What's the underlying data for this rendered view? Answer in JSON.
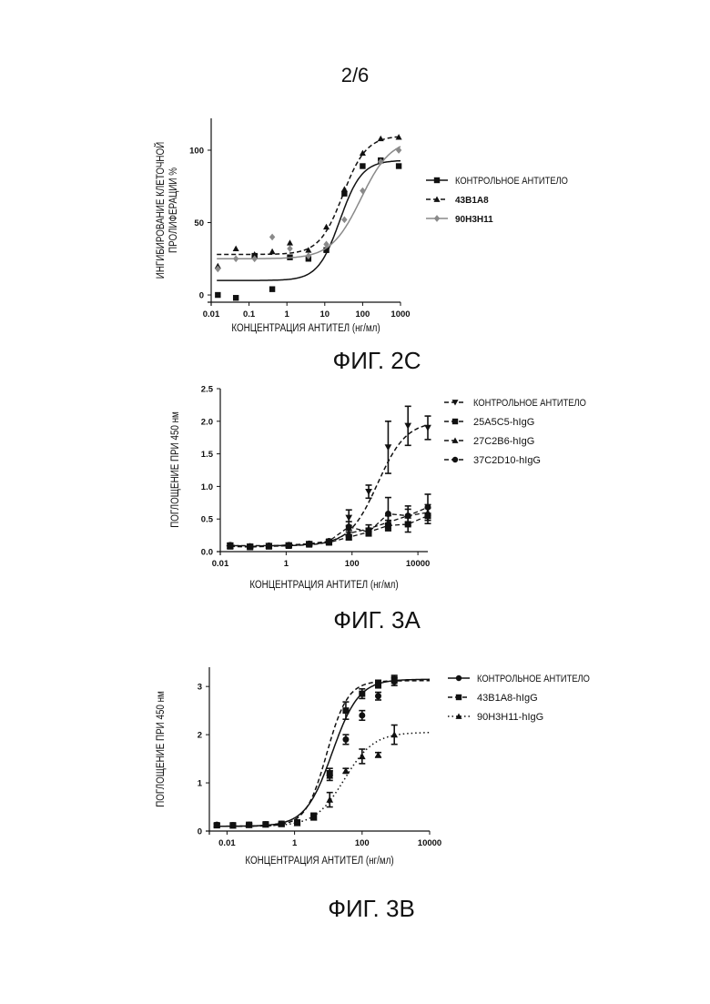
{
  "page_number": "2/6",
  "chart_data": [
    {
      "id": "fig2c",
      "caption": "ФИГ. 2С",
      "type": "scatter",
      "x_scale": "log",
      "xlim": [
        0.01,
        1000
      ],
      "ylim": [
        -5,
        122
      ],
      "x_ticks": [
        0.01,
        0.1,
        1,
        10,
        100,
        1000
      ],
      "x_tick_labels": [
        "0.01",
        "0.1",
        "1",
        "10",
        "100",
        "1000"
      ],
      "y_ticks": [
        0,
        50,
        100
      ],
      "y_tick_labels": [
        "0",
        "50",
        "100"
      ],
      "xlabel": "КОНЦЕНТРАЦИЯ АНТИТЕЛ (нг/мл)",
      "ylabel": [
        "ИНГИБИРОВАНИЕ КЛЕТОЧНОЙ",
        "ПРОЛИФЕРАЦИИ %"
      ],
      "legend_position": "right",
      "series": [
        {
          "name": "КОНТРОЛЬНОЕ АНТИТЕЛО",
          "marker": "square",
          "dash": "solid",
          "color": "#111111",
          "x": [
            0.015,
            0.045,
            0.14,
            0.41,
            1.2,
            3.7,
            11,
            33,
            100,
            300,
            900
          ],
          "y": [
            0,
            -2,
            27,
            4,
            26,
            25,
            31,
            70,
            89,
            93,
            89
          ],
          "fit": {
            "bottom": 10,
            "top": 93,
            "ec50": 25,
            "hill": 1.5
          }
        },
        {
          "name": "43B1A8",
          "marker": "triangle",
          "dash": "dashed",
          "color": "#111111",
          "x": [
            0.015,
            0.045,
            0.14,
            0.41,
            1.2,
            3.7,
            11,
            33,
            100,
            300,
            900
          ],
          "y": [
            20,
            32,
            28,
            30,
            36,
            31,
            47,
            73,
            98,
            108,
            109
          ],
          "fit": {
            "bottom": 28,
            "top": 110,
            "ec50": 30,
            "hill": 1.4
          }
        },
        {
          "name": "90H3H11",
          "marker": "diamond",
          "dash": "solid",
          "color": "#8a8a8a",
          "x": [
            0.015,
            0.045,
            0.14,
            0.41,
            1.2,
            3.7,
            11,
            33,
            100,
            300,
            900
          ],
          "y": [
            18,
            25,
            25,
            40,
            32,
            27,
            35,
            52,
            72,
            92,
            100
          ],
          "fit": {
            "bottom": 25,
            "top": 108,
            "ec50": 90,
            "hill": 1.1
          }
        }
      ]
    },
    {
      "id": "fig3a",
      "caption": "ФИГ. 3А",
      "type": "scatter",
      "x_scale": "log",
      "xlim": [
        0.01,
        20000
      ],
      "ylim": [
        0,
        2.5
      ],
      "x_ticks": [
        0.01,
        1,
        100,
        10000
      ],
      "x_tick_labels": [
        "0.01",
        "1",
        "100",
        "10000"
      ],
      "y_ticks": [
        0,
        0.5,
        1.0,
        1.5,
        2.0,
        2.5
      ],
      "y_tick_labels": [
        "0.0",
        "0.5",
        "1.0",
        "1.5",
        "2.0",
        "2.5"
      ],
      "xlabel": "КОНЦЕНТРАЦИЯ АНТИТЕЛ (нг/мл)",
      "ylabel": [
        "ПОГЛОЩЕНИЕ ПРИ 450 нм"
      ],
      "legend_position": "right",
      "series": [
        {
          "name": "КОНТРОЛЬНОЕ АНТИТЕЛО",
          "marker": "triangle-down",
          "dash": "dashed",
          "color": "#111111",
          "x": [
            0.02,
            0.08,
            0.3,
            1.2,
            5,
            20,
            80,
            320,
            1250,
            5000,
            20000
          ],
          "y": [
            0.09,
            0.08,
            0.09,
            0.1,
            0.12,
            0.15,
            0.52,
            0.92,
            1.6,
            1.93,
            1.9
          ],
          "err": [
            0.04,
            0.03,
            0.03,
            0.03,
            0.03,
            0.03,
            0.12,
            0.1,
            0.4,
            0.3,
            0.18
          ],
          "fit": {
            "bottom": 0.09,
            "top": 2.0,
            "ec50": 600,
            "hill": 1.0
          }
        },
        {
          "name": "25A5C5-hIgG",
          "marker": "square",
          "dash": "dashed",
          "color": "#111111",
          "x": [
            0.02,
            0.08,
            0.3,
            1.2,
            5,
            20,
            80,
            320,
            1250,
            5000,
            20000
          ],
          "y": [
            0.08,
            0.07,
            0.08,
            0.09,
            0.11,
            0.14,
            0.22,
            0.3,
            0.4,
            0.42,
            0.55
          ],
          "err": [
            0.03,
            0.02,
            0.02,
            0.02,
            0.02,
            0.03,
            0.04,
            0.05,
            0.08,
            0.12,
            0.12
          ]
        },
        {
          "name": "27C2B6-hIgG",
          "marker": "triangle",
          "dash": "dashed",
          "color": "#111111",
          "x": [
            0.02,
            0.08,
            0.3,
            1.2,
            5,
            20,
            80,
            320,
            1250,
            5000,
            20000
          ],
          "y": [
            0.09,
            0.08,
            0.09,
            0.1,
            0.12,
            0.15,
            0.28,
            0.35,
            0.45,
            0.55,
            0.6
          ],
          "err": [
            0.03,
            0.02,
            0.02,
            0.02,
            0.02,
            0.03,
            0.05,
            0.06,
            0.1,
            0.1,
            0.12
          ]
        },
        {
          "name": "37C2D10-hIgG",
          "marker": "circle",
          "dash": "dashed",
          "color": "#111111",
          "x": [
            0.02,
            0.08,
            0.3,
            1.2,
            5,
            20,
            80,
            320,
            1250,
            5000,
            20000
          ],
          "y": [
            0.1,
            0.08,
            0.09,
            0.1,
            0.12,
            0.16,
            0.38,
            0.3,
            0.58,
            0.55,
            0.68
          ],
          "err": [
            0.03,
            0.02,
            0.02,
            0.02,
            0.02,
            0.03,
            0.08,
            0.06,
            0.25,
            0.15,
            0.2
          ]
        }
      ]
    },
    {
      "id": "fig3b",
      "caption": "ФИГ. 3В",
      "type": "scatter",
      "x_scale": "log",
      "xlim": [
        0.003,
        10000
      ],
      "ylim": [
        0,
        3.4
      ],
      "x_ticks": [
        0.01,
        1,
        100,
        10000
      ],
      "x_tick_labels": [
        "0.01",
        "1",
        "100",
        "10000"
      ],
      "y_ticks": [
        0,
        1,
        2,
        3
      ],
      "y_tick_labels": [
        "0",
        "1",
        "2",
        "3"
      ],
      "xlabel": "КОНЦЕНТРАЦИЯ АНТИТЕЛ (нг/мл)",
      "ylabel": [
        "ПОГЛОЩЕНИЕ ПРИ 450 нм"
      ],
      "legend_position": "right",
      "series": [
        {
          "name": "КОНТРОЛЬНОЕ АНТИТЕЛО",
          "marker": "circle",
          "dash": "solid",
          "color": "#111111",
          "x": [
            0.005,
            0.015,
            0.045,
            0.14,
            0.41,
            1.2,
            3.7,
            11,
            33,
            100,
            300,
            900
          ],
          "y": [
            0.13,
            0.12,
            0.13,
            0.14,
            0.15,
            0.17,
            0.3,
            1.15,
            1.9,
            2.4,
            2.8,
            3.1
          ],
          "err": [
            0.03,
            0.03,
            0.03,
            0.03,
            0.03,
            0.03,
            0.05,
            0.1,
            0.1,
            0.1,
            0.08,
            0.08
          ],
          "fit": {
            "bottom": 0.1,
            "top": 3.15,
            "ec50": 13,
            "hill": 1.1
          }
        },
        {
          "name": "43B1A8-hIgG",
          "marker": "square",
          "dash": "dashed",
          "color": "#111111",
          "x": [
            0.005,
            0.015,
            0.045,
            0.14,
            0.41,
            1.2,
            3.7,
            11,
            33,
            100,
            300,
            900
          ],
          "y": [
            0.12,
            0.12,
            0.13,
            0.14,
            0.15,
            0.18,
            0.32,
            1.2,
            2.5,
            2.85,
            3.05,
            3.15
          ],
          "err": [
            0.03,
            0.03,
            0.03,
            0.03,
            0.03,
            0.03,
            0.05,
            0.1,
            0.18,
            0.1,
            0.08,
            0.08
          ],
          "fit": {
            "bottom": 0.1,
            "top": 3.12,
            "ec50": 9,
            "hill": 1.4
          }
        },
        {
          "name": "90H3H11-hIgG",
          "marker": "triangle",
          "dash": "dotted",
          "color": "#111111",
          "x": [
            0.005,
            0.015,
            0.045,
            0.14,
            0.41,
            1.2,
            3.7,
            11,
            33,
            100,
            300,
            900
          ],
          "y": [
            0.12,
            0.11,
            0.12,
            0.13,
            0.14,
            0.16,
            0.28,
            0.65,
            1.25,
            1.55,
            1.58,
            2.0
          ],
          "err": [
            0.03,
            0.03,
            0.03,
            0.03,
            0.03,
            0.03,
            0.05,
            0.15,
            0.05,
            0.15,
            0.05,
            0.2
          ],
          "fit": {
            "bottom": 0.1,
            "top": 2.05,
            "ec50": 30,
            "hill": 1.0
          }
        }
      ]
    }
  ]
}
